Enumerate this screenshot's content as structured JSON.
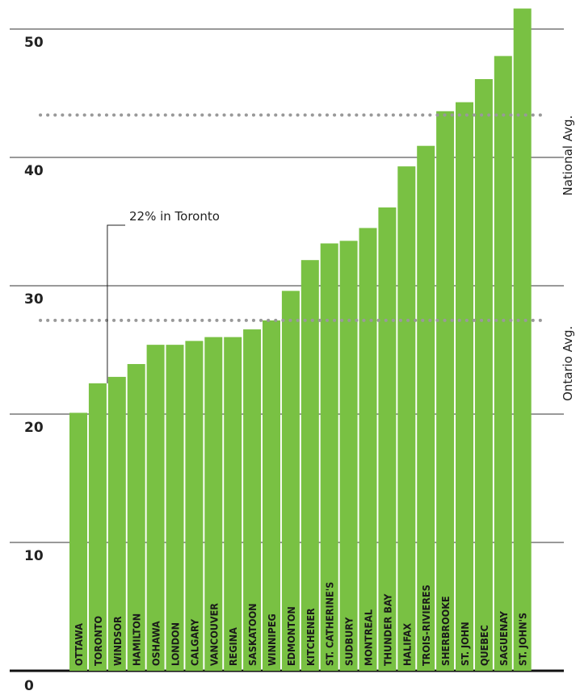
{
  "chart_data": {
    "type": "bar",
    "categories": [
      "OTTAWA",
      "TORONTO",
      "WINDSOR",
      "HAMILTON",
      "OSHAWA",
      "LONDON",
      "CALGARY",
      "VANCOUVER",
      "REGINA",
      "SASKATOON",
      "WINNIPEG",
      "EDMONTON",
      "KITCHENER",
      "ST. CATHERINE'S",
      "SUDBURY",
      "MONTREAL",
      "THUNDER BAY",
      "HALIFAX",
      "TROIS-RIVIERES",
      "SHERBROOKE",
      "ST. JOHN",
      "QUEBEC",
      "SAGUENAY",
      "ST. JOHN'S"
    ],
    "values": [
      20.1,
      22.4,
      22.9,
      23.9,
      25.4,
      25.4,
      25.7,
      26.0,
      26.0,
      26.6,
      27.3,
      29.6,
      32.0,
      33.3,
      33.5,
      34.5,
      36.1,
      39.3,
      40.9,
      43.6,
      44.3,
      46.1,
      47.9,
      51.6
    ],
    "yticks": [
      0,
      10,
      20,
      30,
      40,
      50
    ],
    "ylim": [
      0,
      52
    ],
    "reference_lines": [
      {
        "label": "National Avg.",
        "value": 43.3
      },
      {
        "label": "Ontario Avg.",
        "value": 27.3
      }
    ],
    "annotation": {
      "text": "22% in Toronto",
      "category_index": 1
    },
    "grid": true,
    "bar_color": "#79c143",
    "reference_color": "#999999"
  }
}
